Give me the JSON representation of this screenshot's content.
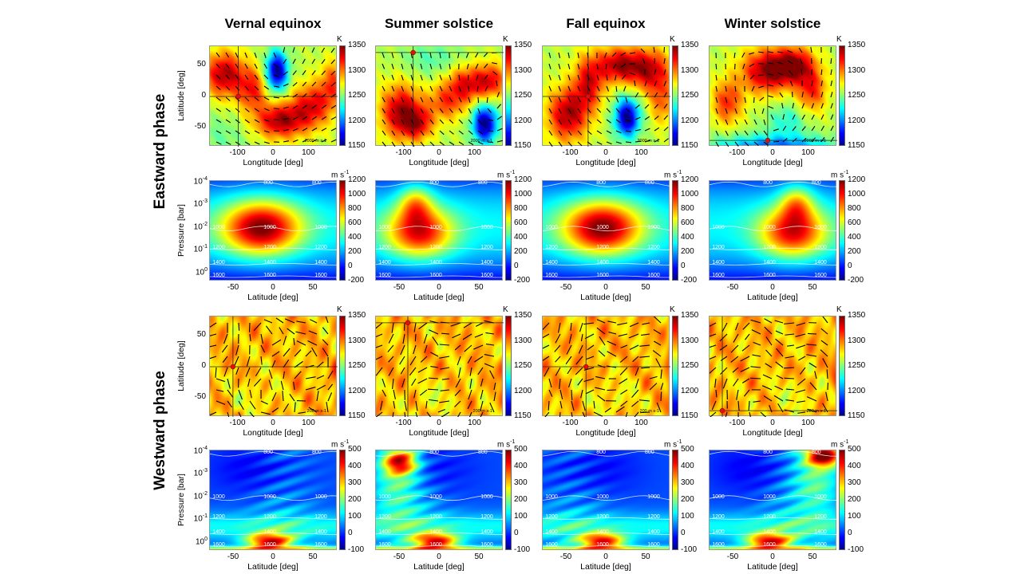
{
  "columns": [
    "Vernal equinox",
    "Summer solstice",
    "Fall equinox",
    "Winter solstice"
  ],
  "rows": [
    "Eastward phase",
    "Westward phase"
  ],
  "labels": {
    "map_x": "Longtitude [deg]",
    "map_y": "Latitude [deg]",
    "section_x": "Latitude [deg]",
    "section_y": "Pressure [bar]",
    "temp_unit": "K",
    "wind_unit": "m s",
    "wind_unit_exp": "-1",
    "pressure_base": "10",
    "east_vector_scale": "2000 m s-1",
    "west_vector_scale": "200 m s-1"
  },
  "chart_data": [
    {
      "type": "heatmap",
      "panel": "temperature-map",
      "phase": "Eastward phase",
      "season": "Vernal equinox",
      "xlabel": "Longtitude [deg]",
      "ylabel": "Latitude [deg]",
      "xticks": [
        -100,
        0,
        100
      ],
      "yticks": [
        50,
        0,
        -50
      ],
      "xlim": [
        -180,
        180
      ],
      "ylim": [
        -80,
        80
      ],
      "colorbar": {
        "unit": "K",
        "range": [
          1150,
          1350
        ],
        "ticks": [
          1350,
          1300,
          1250,
          1200,
          1150
        ]
      },
      "crosshair": {
        "lon": -100,
        "lat": 0
      },
      "vector_scale": "2000 m s-1"
    },
    {
      "type": "heatmap",
      "panel": "temperature-map",
      "phase": "Eastward phase",
      "season": "Summer solstice",
      "xlabel": "Longtitude [deg]",
      "xticks": [
        -100,
        0,
        100
      ],
      "xlim": [
        -180,
        180
      ],
      "ylim": [
        -80,
        80
      ],
      "colorbar": {
        "unit": "K",
        "range": [
          1150,
          1350
        ],
        "ticks": [
          1350,
          1300,
          1250,
          1200,
          1150
        ]
      },
      "crosshair": {
        "lon": -75,
        "lat": 70
      },
      "vector_scale": "2000 m s-1"
    },
    {
      "type": "heatmap",
      "panel": "temperature-map",
      "phase": "Eastward phase",
      "season": "Fall equinox",
      "xlabel": "Longtitude [deg]",
      "xticks": [
        -100,
        0,
        100
      ],
      "xlim": [
        -180,
        180
      ],
      "ylim": [
        -80,
        80
      ],
      "colorbar": {
        "unit": "K",
        "range": [
          1150,
          1350
        ],
        "ticks": [
          1350,
          1300,
          1250,
          1200,
          1150
        ]
      },
      "crosshair": {
        "lon": -52,
        "lat": 0
      },
      "vector_scale": "2000 m s-1"
    },
    {
      "type": "heatmap",
      "panel": "temperature-map",
      "phase": "Eastward phase",
      "season": "Winter solstice",
      "xlabel": "Longtitude [deg]",
      "xticks": [
        -100,
        0,
        100
      ],
      "xlim": [
        -180,
        180
      ],
      "ylim": [
        -80,
        80
      ],
      "colorbar": {
        "unit": "K",
        "range": [
          1150,
          1350
        ],
        "ticks": [
          1350,
          1300,
          1250,
          1200,
          1150
        ]
      },
      "crosshair": {
        "lon": -16,
        "lat": -70
      },
      "vector_scale": "2000 m s-1"
    },
    {
      "type": "heatmap",
      "panel": "wind-section",
      "phase": "Eastward phase",
      "season": "Vernal equinox",
      "xlabel": "Latitude [deg]",
      "ylabel": "Pressure [bar]",
      "xticks": [
        -50,
        0,
        50
      ],
      "yticks_exp": [
        -4,
        -3,
        -2,
        -1,
        0
      ],
      "xlim": [
        -80,
        80
      ],
      "colorbar": {
        "unit": "m s-1",
        "range": [
          -200,
          1200
        ],
        "ticks": [
          1200,
          1000,
          800,
          600,
          400,
          200,
          0,
          -200
        ]
      },
      "contour_levels": [
        800,
        1000,
        1200,
        1400,
        1600
      ]
    },
    {
      "type": "heatmap",
      "panel": "wind-section",
      "phase": "Eastward phase",
      "season": "Summer solstice",
      "xlabel": "Latitude [deg]",
      "xticks": [
        -50,
        0,
        50
      ],
      "xlim": [
        -80,
        80
      ],
      "colorbar": {
        "unit": "m s-1",
        "range": [
          -200,
          1200
        ],
        "ticks": [
          1200,
          1000,
          800,
          600,
          400,
          200,
          0,
          -200
        ]
      },
      "contour_levels": [
        800,
        1000,
        1200,
        1400,
        1600
      ]
    },
    {
      "type": "heatmap",
      "panel": "wind-section",
      "phase": "Eastward phase",
      "season": "Fall equinox",
      "xlabel": "Latitude [deg]",
      "xticks": [
        -50,
        0,
        50
      ],
      "xlim": [
        -80,
        80
      ],
      "colorbar": {
        "unit": "m s-1",
        "range": [
          -200,
          1200
        ],
        "ticks": [
          1200,
          1000,
          800,
          600,
          400,
          200,
          0,
          -200
        ]
      },
      "contour_levels": [
        800,
        1000,
        1200,
        1400,
        1600
      ]
    },
    {
      "type": "heatmap",
      "panel": "wind-section",
      "phase": "Eastward phase",
      "season": "Winter solstice",
      "xlabel": "Latitude [deg]",
      "xticks": [
        -50,
        0,
        50
      ],
      "xlim": [
        -80,
        80
      ],
      "colorbar": {
        "unit": "m s-1",
        "range": [
          -200,
          1200
        ],
        "ticks": [
          1200,
          1000,
          800,
          600,
          400,
          200,
          0,
          -200
        ]
      },
      "contour_levels": [
        800,
        1000,
        1200,
        1400,
        1600
      ]
    },
    {
      "type": "heatmap",
      "panel": "temperature-map",
      "phase": "Westward phase",
      "season": "Vernal equinox",
      "xlabel": "Longtitude [deg]",
      "ylabel": "Latitude [deg]",
      "xticks": [
        -100,
        0,
        100
      ],
      "yticks": [
        50,
        0,
        -50
      ],
      "xlim": [
        -180,
        180
      ],
      "ylim": [
        -80,
        80
      ],
      "colorbar": {
        "unit": "K",
        "range": [
          1150,
          1350
        ],
        "ticks": [
          1350,
          1300,
          1250,
          1200,
          1150
        ]
      },
      "crosshair": {
        "lon": -115,
        "lat": 0
      },
      "vector_scale": "200 m s-1"
    },
    {
      "type": "heatmap",
      "panel": "temperature-map",
      "phase": "Westward phase",
      "season": "Summer solstice",
      "xlabel": "Longtitude [deg]",
      "xticks": [
        -100,
        0,
        100
      ],
      "xlim": [
        -180,
        180
      ],
      "ylim": [
        -80,
        80
      ],
      "colorbar": {
        "unit": "K",
        "range": [
          1150,
          1350
        ],
        "ticks": [
          1350,
          1300,
          1250,
          1200,
          1150
        ]
      },
      "crosshair": {
        "lon": -90,
        "lat": 70
      },
      "vector_scale": "200 m s-1"
    },
    {
      "type": "heatmap",
      "panel": "temperature-map",
      "phase": "Westward phase",
      "season": "Fall equinox",
      "xlabel": "Longtitude [deg]",
      "xticks": [
        -100,
        0,
        100
      ],
      "xlim": [
        -180,
        180
      ],
      "ylim": [
        -80,
        80
      ],
      "colorbar": {
        "unit": "K",
        "range": [
          1150,
          1350
        ],
        "ticks": [
          1350,
          1300,
          1250,
          1200,
          1150
        ]
      },
      "crosshair": {
        "lon": -58,
        "lat": 0
      },
      "vector_scale": "200 m s-1"
    },
    {
      "type": "heatmap",
      "panel": "temperature-map",
      "phase": "Westward phase",
      "season": "Winter solstice",
      "xlabel": "Longtitude [deg]",
      "xticks": [
        -100,
        0,
        100
      ],
      "xlim": [
        -180,
        180
      ],
      "ylim": [
        -80,
        80
      ],
      "colorbar": {
        "unit": "K",
        "range": [
          1150,
          1350
        ],
        "ticks": [
          1350,
          1300,
          1250,
          1200,
          1150
        ]
      },
      "crosshair": {
        "lon": -144,
        "lat": -70
      },
      "vector_scale": "200 m s-1"
    },
    {
      "type": "heatmap",
      "panel": "wind-section",
      "phase": "Westward phase",
      "season": "Vernal equinox",
      "xlabel": "Latitude [deg]",
      "ylabel": "Pressure [bar]",
      "xticks": [
        -50,
        0,
        50
      ],
      "yticks_exp": [
        -4,
        -3,
        -2,
        -1,
        0
      ],
      "xlim": [
        -80,
        80
      ],
      "colorbar": {
        "unit": "m s-1",
        "range": [
          -100,
          500
        ],
        "ticks": [
          500,
          400,
          300,
          200,
          100,
          0,
          -100
        ]
      },
      "contour_levels": [
        800,
        1000,
        1200,
        1400,
        1600
      ]
    },
    {
      "type": "heatmap",
      "panel": "wind-section",
      "phase": "Westward phase",
      "season": "Summer solstice",
      "xlabel": "Latitude [deg]",
      "xticks": [
        -50,
        0,
        50
      ],
      "xlim": [
        -80,
        80
      ],
      "colorbar": {
        "unit": "m s-1",
        "range": [
          -100,
          500
        ],
        "ticks": [
          500,
          400,
          300,
          200,
          100,
          0,
          -100
        ]
      },
      "contour_levels": [
        800,
        1000,
        1200,
        1400,
        1600
      ]
    },
    {
      "type": "heatmap",
      "panel": "wind-section",
      "phase": "Westward phase",
      "season": "Fall equinox",
      "xlabel": "Latitude [deg]",
      "xticks": [
        -50,
        0,
        50
      ],
      "xlim": [
        -80,
        80
      ],
      "colorbar": {
        "unit": "m s-1",
        "range": [
          -100,
          500
        ],
        "ticks": [
          500,
          400,
          300,
          200,
          100,
          0,
          -100
        ]
      },
      "contour_levels": [
        800,
        1000,
        1200,
        1400,
        1600
      ]
    },
    {
      "type": "heatmap",
      "panel": "wind-section",
      "phase": "Westward phase",
      "season": "Winter solstice",
      "xlabel": "Latitude [deg]",
      "xticks": [
        -50,
        0,
        50
      ],
      "xlim": [
        -80,
        80
      ],
      "colorbar": {
        "unit": "m s-1",
        "range": [
          -100,
          500
        ],
        "ticks": [
          500,
          400,
          300,
          200,
          100,
          0,
          -100
        ]
      },
      "contour_levels": [
        800,
        1000,
        1200,
        1400,
        1600
      ]
    }
  ]
}
